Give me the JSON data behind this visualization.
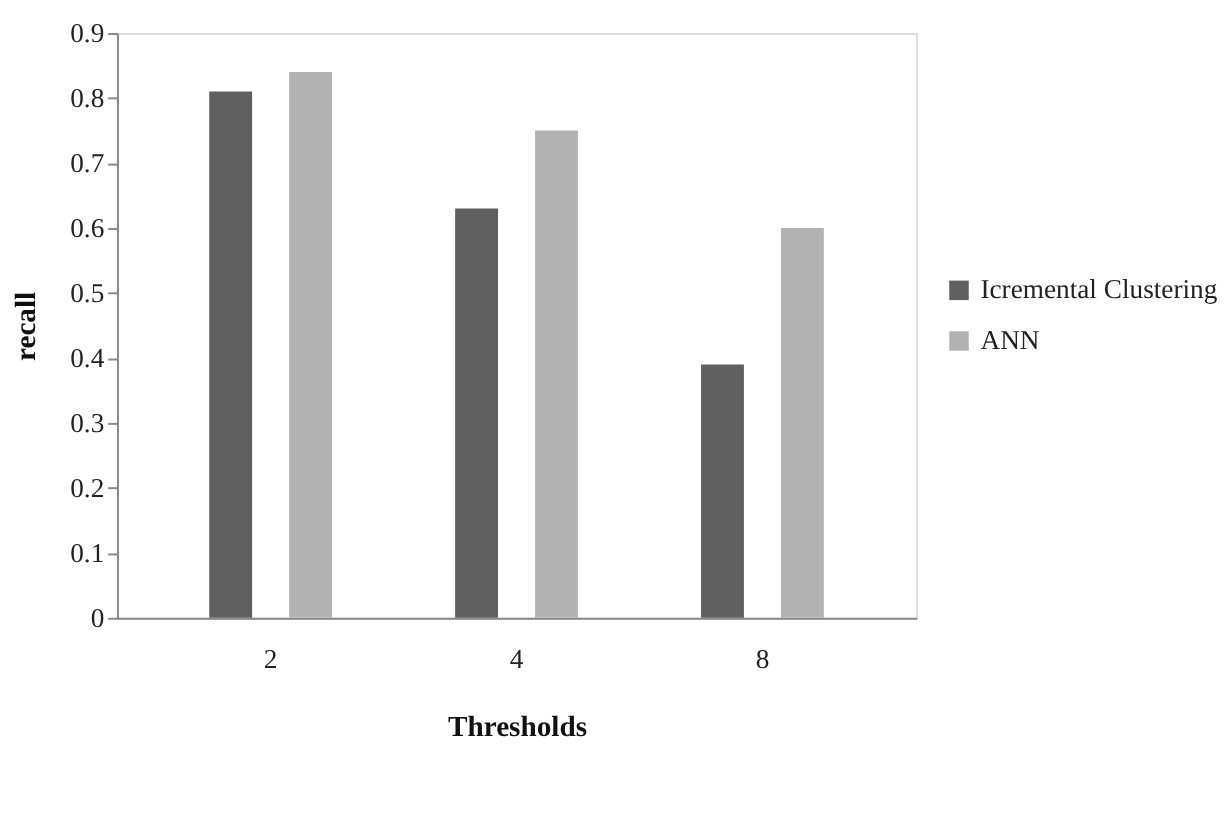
{
  "chart_data": {
    "type": "bar",
    "xlabel": "Thresholds",
    "ylabel": "recall",
    "categories": [
      "2",
      "4",
      "8"
    ],
    "series": [
      {
        "name": "Icremental Clustering",
        "color": "#606060",
        "values": [
          0.81,
          0.63,
          0.39
        ]
      },
      {
        "name": "ANN",
        "color": "#b2b2b2",
        "values": [
          0.84,
          0.75,
          0.6
        ]
      }
    ],
    "ylim": [
      0,
      0.9
    ],
    "yticks": [
      0,
      0.1,
      0.2,
      0.3,
      0.4,
      0.5,
      0.6,
      0.7,
      0.8,
      0.9
    ],
    "grid": false,
    "legend": "right"
  }
}
